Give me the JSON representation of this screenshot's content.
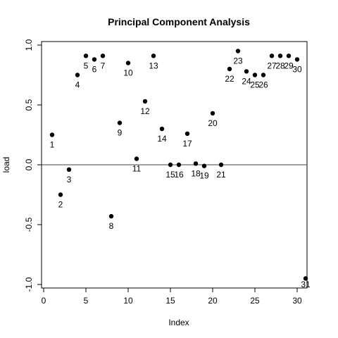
{
  "chart_data": {
    "type": "scatter",
    "title": "Principal Component Analysis",
    "xlabel": "Index",
    "ylabel": "load",
    "xlim": [
      0,
      31.5
    ],
    "ylim": [
      -1.0,
      1.0
    ],
    "xticks": [
      0,
      5,
      10,
      15,
      20,
      25,
      30
    ],
    "yticks": [
      -1.0,
      -0.5,
      0.0,
      0.5,
      1.0
    ],
    "xtick_labels": [
      "0",
      "5",
      "10",
      "15",
      "20",
      "25",
      "30"
    ],
    "ytick_labels": [
      "-1.0",
      "-0.5",
      "0.0",
      "0.5",
      "1.0"
    ],
    "reference_line_y": 0,
    "grid": false,
    "points": [
      {
        "label": "1",
        "x": 1,
        "y": 0.25
      },
      {
        "label": "2",
        "x": 2,
        "y": -0.25
      },
      {
        "label": "3",
        "x": 3,
        "y": -0.04
      },
      {
        "label": "4",
        "x": 4,
        "y": 0.75
      },
      {
        "label": "5",
        "x": 5,
        "y": 0.91
      },
      {
        "label": "6",
        "x": 6,
        "y": 0.88
      },
      {
        "label": "7",
        "x": 7,
        "y": 0.91
      },
      {
        "label": "8",
        "x": 8,
        "y": -0.43
      },
      {
        "label": "9",
        "x": 9,
        "y": 0.35
      },
      {
        "label": "10",
        "x": 10,
        "y": 0.85
      },
      {
        "label": "11",
        "x": 11,
        "y": 0.05
      },
      {
        "label": "12",
        "x": 12,
        "y": 0.53
      },
      {
        "label": "13",
        "x": 13,
        "y": 0.91
      },
      {
        "label": "14",
        "x": 14,
        "y": 0.3
      },
      {
        "label": "15",
        "x": 15,
        "y": 0.0
      },
      {
        "label": "16",
        "x": 16,
        "y": 0.0
      },
      {
        "label": "17",
        "x": 17,
        "y": 0.26
      },
      {
        "label": "18",
        "x": 18,
        "y": 0.01
      },
      {
        "label": "19",
        "x": 19,
        "y": -0.01
      },
      {
        "label": "20",
        "x": 20,
        "y": 0.43
      },
      {
        "label": "21",
        "x": 21,
        "y": 0.0
      },
      {
        "label": "22",
        "x": 22,
        "y": 0.8
      },
      {
        "label": "23",
        "x": 23,
        "y": 0.95
      },
      {
        "label": "24",
        "x": 24,
        "y": 0.78
      },
      {
        "label": "25",
        "x": 25,
        "y": 0.75
      },
      {
        "label": "26",
        "x": 26,
        "y": 0.75
      },
      {
        "label": "27",
        "x": 27,
        "y": 0.91
      },
      {
        "label": "28",
        "x": 28,
        "y": 0.91
      },
      {
        "label": "29",
        "x": 29,
        "y": 0.91
      },
      {
        "label": "30",
        "x": 30,
        "y": 0.88
      },
      {
        "label": "31",
        "x": 31,
        "y": -0.95
      }
    ],
    "marker_color": "#000000"
  }
}
